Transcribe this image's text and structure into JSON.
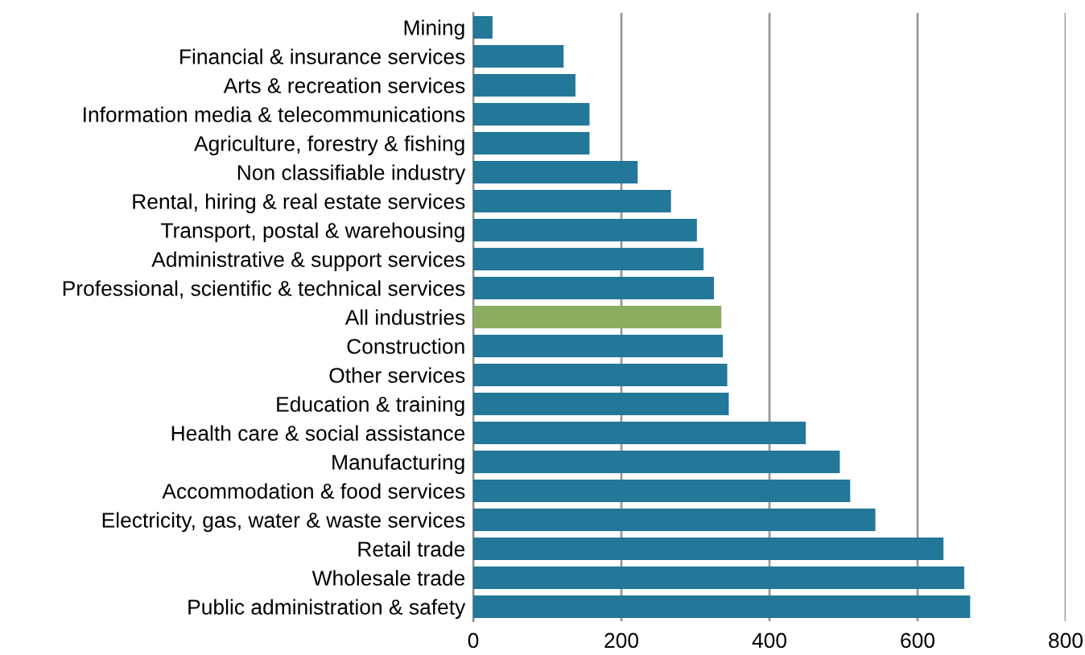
{
  "chart_data": {
    "type": "bar",
    "orientation": "horizontal",
    "categories": [
      "Mining",
      "Financial & insurance services",
      "Arts & recreation services",
      "Information media & telecommunications",
      "Agriculture, forestry & fishing",
      "Non classifiable industry",
      "Rental, hiring & real estate services",
      "Transport, postal & warehousing",
      "Administrative & support services",
      "Professional, scientific & technical services",
      "All industries",
      "Construction",
      "Other services",
      "Education & training",
      "Health care & social assistance",
      "Manufacturing",
      "Accommodation & food services",
      "Electricity, gas, water & waste services",
      "Retail trade",
      "Wholesale trade",
      "Public administration & safety"
    ],
    "values": [
      26,
      122,
      138,
      157,
      157,
      222,
      267,
      302,
      311,
      325,
      335,
      337,
      343,
      345,
      449,
      495,
      509,
      543,
      635,
      663,
      671
    ],
    "colors": [
      "#23789a",
      "#23789a",
      "#23789a",
      "#23789a",
      "#23789a",
      "#23789a",
      "#23789a",
      "#23789a",
      "#23789a",
      "#23789a",
      "#8aad5f",
      "#23789a",
      "#23789a",
      "#23789a",
      "#23789a",
      "#23789a",
      "#23789a",
      "#23789a",
      "#23789a",
      "#23789a",
      "#23789a"
    ],
    "xlim": [
      0,
      800
    ],
    "xticks": [
      0,
      200,
      400,
      600,
      800
    ],
    "grid": "x",
    "legend": false
  }
}
